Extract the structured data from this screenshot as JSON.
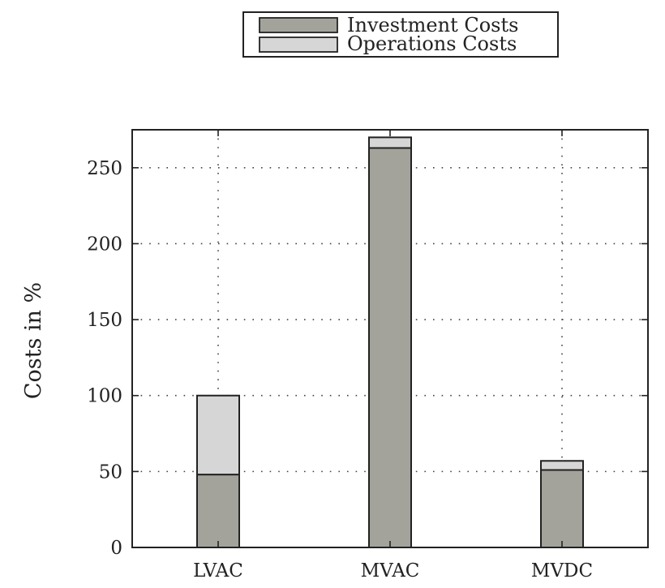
{
  "chart_data": {
    "type": "bar",
    "stacked": true,
    "categories": [
      "LVAC",
      "MVAC",
      "MVDC"
    ],
    "series": [
      {
        "name": "Investment Costs",
        "values": [
          48,
          263,
          51
        ],
        "color": "#a3a39c"
      },
      {
        "name": "Operations Costs",
        "values": [
          52,
          7,
          6
        ],
        "color": "#d6d6d6"
      }
    ],
    "ylabel": "Costs in %",
    "xlabel": "",
    "ylim": [
      0,
      275
    ],
    "yticks": [
      0,
      50,
      100,
      150,
      200,
      250
    ],
    "grid": "dotted",
    "legend_position": "top-center"
  }
}
